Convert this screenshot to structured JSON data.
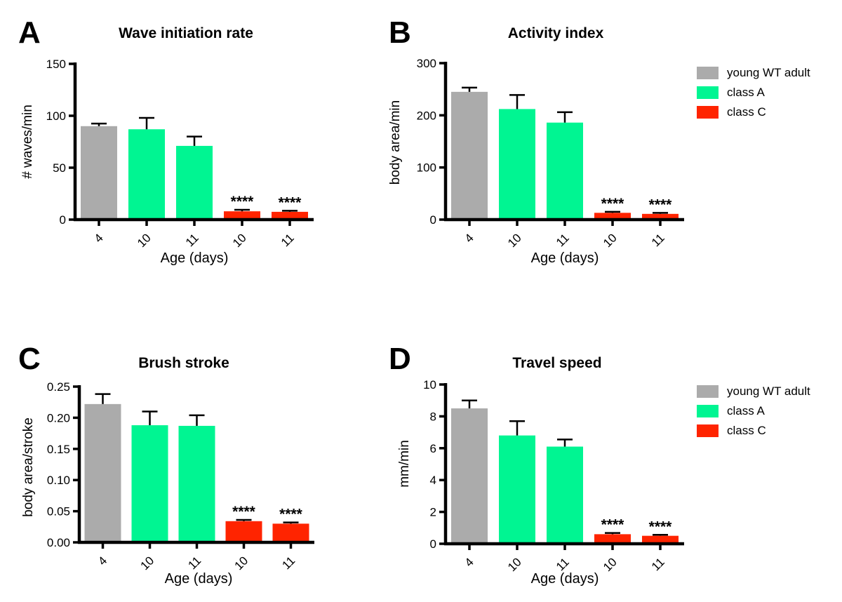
{
  "figure": {
    "background": "#ffffff",
    "significance_marker": "****",
    "legend": {
      "entries": [
        {
          "label": "young WT adult",
          "color": "#ABABAB"
        },
        {
          "label": "class A",
          "color": "#00F592"
        },
        {
          "label": "class C",
          "color": "#FF2400"
        }
      ]
    }
  },
  "chart_data": [
    {
      "id": "A",
      "type": "bar",
      "panel_label": "A",
      "title": "Wave initiation rate",
      "xlabel": "Age (days)",
      "ylabel": "# waves/min",
      "ylim": [
        0,
        150
      ],
      "yticks": [
        0,
        50,
        100,
        150
      ],
      "ytick_labels": [
        "0",
        "50",
        "100",
        "150"
      ],
      "categories": [
        "4",
        "10",
        "11",
        "10",
        "11"
      ],
      "groups": [
        "young WT adult",
        "class A",
        "class A",
        "class C",
        "class C"
      ],
      "values": [
        90,
        87,
        71,
        8,
        7.5
      ],
      "errors": [
        2.5,
        11,
        9,
        1.5,
        1
      ],
      "significant": [
        false,
        false,
        false,
        true,
        true
      ],
      "grid": false,
      "legend_position": "right"
    },
    {
      "id": "B",
      "type": "bar",
      "panel_label": "B",
      "title": "Activity index",
      "xlabel": "Age (days)",
      "ylabel": "body area/min",
      "ylim": [
        0,
        300
      ],
      "yticks": [
        0,
        100,
        200,
        300
      ],
      "ytick_labels": [
        "0",
        "100",
        "200",
        "300"
      ],
      "categories": [
        "4",
        "10",
        "11",
        "10",
        "11"
      ],
      "groups": [
        "young WT adult",
        "class A",
        "class A",
        "class C",
        "class C"
      ],
      "values": [
        245,
        212,
        186,
        13,
        11
      ],
      "errors": [
        8,
        27,
        20,
        2,
        2
      ],
      "significant": [
        false,
        false,
        false,
        true,
        true
      ],
      "grid": false,
      "legend_position": "right"
    },
    {
      "id": "C",
      "type": "bar",
      "panel_label": "C",
      "title": "Brush stroke",
      "xlabel": "Age (days)",
      "ylabel": "body area/stroke",
      "ylim": [
        0,
        0.25
      ],
      "yticks": [
        0,
        0.05,
        0.1,
        0.15,
        0.2,
        0.25
      ],
      "ytick_labels": [
        "0.00",
        "0.05",
        "0.10",
        "0.15",
        "0.20",
        "0.25"
      ],
      "categories": [
        "4",
        "10",
        "11",
        "10",
        "11"
      ],
      "groups": [
        "young WT adult",
        "class A",
        "class A",
        "class C",
        "class C"
      ],
      "values": [
        0.222,
        0.188,
        0.187,
        0.034,
        0.03
      ],
      "errors": [
        0.016,
        0.022,
        0.017,
        0.002,
        0.002
      ],
      "significant": [
        false,
        false,
        false,
        true,
        true
      ],
      "grid": false,
      "legend_position": "none"
    },
    {
      "id": "D",
      "type": "bar",
      "panel_label": "D",
      "title": "Travel speed",
      "xlabel": "Age (days)",
      "ylabel": "mm/min",
      "ylim": [
        0,
        10
      ],
      "yticks": [
        0,
        2,
        4,
        6,
        8,
        10
      ],
      "ytick_labels": [
        "0",
        "2",
        "4",
        "6",
        "8",
        "10"
      ],
      "categories": [
        "4",
        "10",
        "11",
        "10",
        "11"
      ],
      "groups": [
        "young WT adult",
        "class A",
        "class A",
        "class C",
        "class C"
      ],
      "values": [
        8.5,
        6.8,
        6.1,
        0.6,
        0.5
      ],
      "errors": [
        0.5,
        0.9,
        0.45,
        0.08,
        0.06
      ],
      "significant": [
        false,
        false,
        false,
        true,
        true
      ],
      "grid": false,
      "legend_position": "right"
    }
  ]
}
